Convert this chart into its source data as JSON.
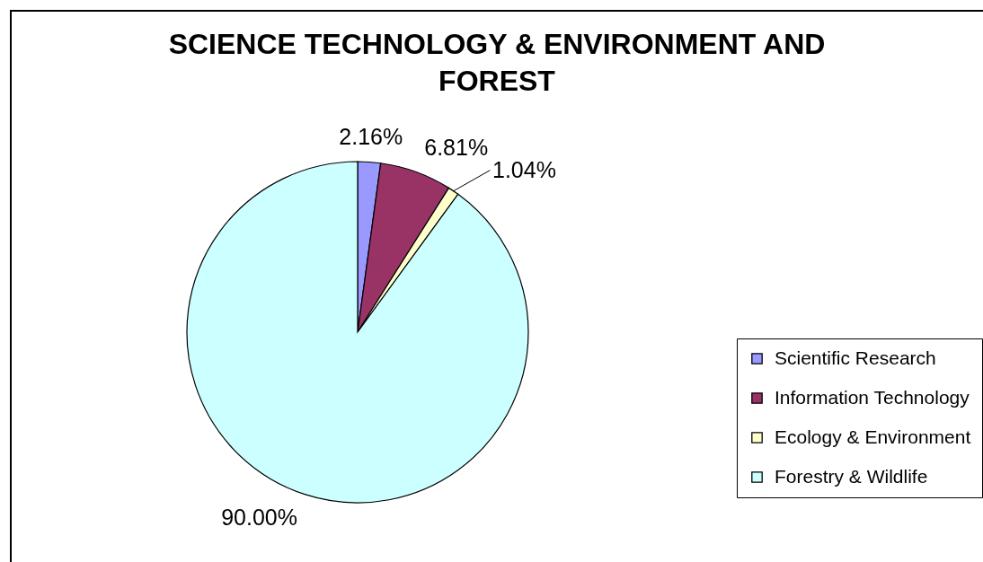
{
  "chart_data": {
    "type": "pie",
    "title": "SCIENCE TECHNOLOGY & ENVIRONMENT AND FOREST",
    "categories": [
      "Scientific Research",
      "Information Technology",
      "Ecology & Environment",
      "Forestry & Wildlife"
    ],
    "values": [
      2.16,
      6.81,
      1.04,
      90.0
    ],
    "colors": [
      "#9999ff",
      "#993366",
      "#ffffcc",
      "#ccffff"
    ],
    "value_labels": [
      "2.16%",
      "6.81%",
      "1.04%",
      "90.00%"
    ],
    "legend": "right"
  }
}
